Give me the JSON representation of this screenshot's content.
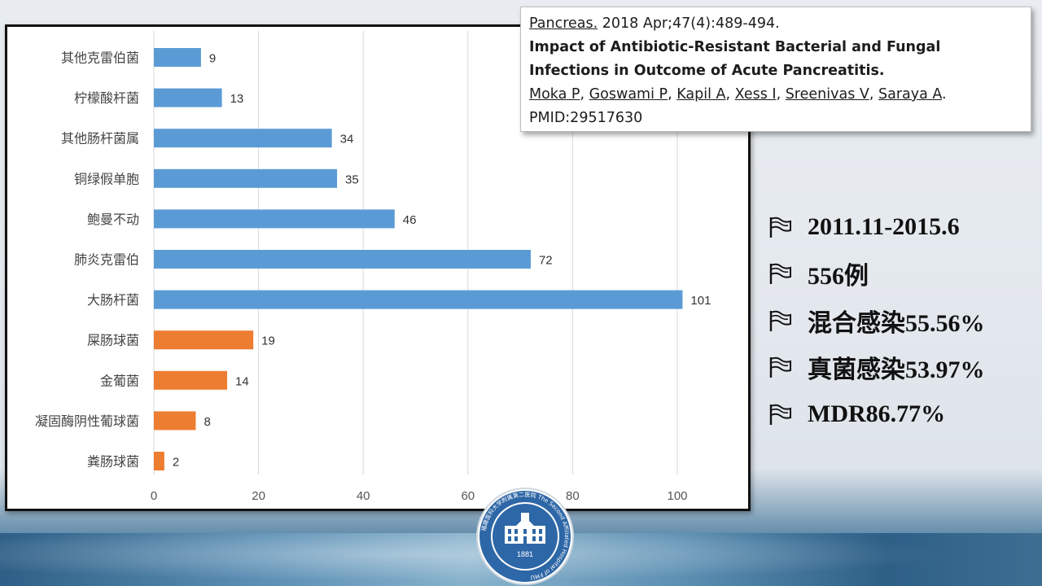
{
  "citation": {
    "journal": "Pancreas.",
    "details": " 2018 Apr;47(4):489-494.",
    "title": "Impact of Antibiotic-Resistant Bacterial and Fungal Infections in Outcome of Acute Pancreatitis.",
    "authors": [
      "Moka P",
      "Goswami P",
      "Kapil A",
      "Xess I",
      "Sreenivas V",
      "Saraya A"
    ],
    "author_separator": ", ",
    "author_end": ".",
    "pmid": "PMID:29517630"
  },
  "stats": [
    {
      "text": "2011.11-2015.6"
    },
    {
      "text": "556例"
    },
    {
      "text": "混合感染55.56%"
    },
    {
      "text": "真菌感染53.97%"
    },
    {
      "text": "MDR86.77%"
    }
  ],
  "logo": {
    "ring_text": "福建医科大学附属第二医院 The Second Affiliated Hospital of FMU",
    "year": "1881"
  },
  "colors": {
    "blue": "#5b9bd5",
    "orange": "#ed7d31",
    "grid": "#d9d9d9"
  },
  "chart_data": {
    "type": "bar",
    "orientation": "horizontal",
    "title": "",
    "xlabel": "",
    "ylabel": "",
    "xlim": [
      0,
      105
    ],
    "xticks": [
      0,
      20,
      40,
      60,
      80,
      100
    ],
    "grid": true,
    "legend": "none",
    "categories": [
      "其他克雷伯菌",
      "柠檬酸杆菌",
      "其他肠杆菌属",
      "铜绿假单胞",
      "鲍曼不动",
      "肺炎克雷伯",
      "大肠杆菌",
      "屎肠球菌",
      "金葡菌",
      "凝固酶阴性葡球菌",
      "粪肠球菌"
    ],
    "values": [
      9,
      13,
      34,
      35,
      46,
      72,
      101,
      19,
      14,
      8,
      2
    ],
    "bar_colors": [
      "#5b9bd5",
      "#5b9bd5",
      "#5b9bd5",
      "#5b9bd5",
      "#5b9bd5",
      "#5b9bd5",
      "#5b9bd5",
      "#ed7d31",
      "#ed7d31",
      "#ed7d31",
      "#ed7d31"
    ]
  }
}
